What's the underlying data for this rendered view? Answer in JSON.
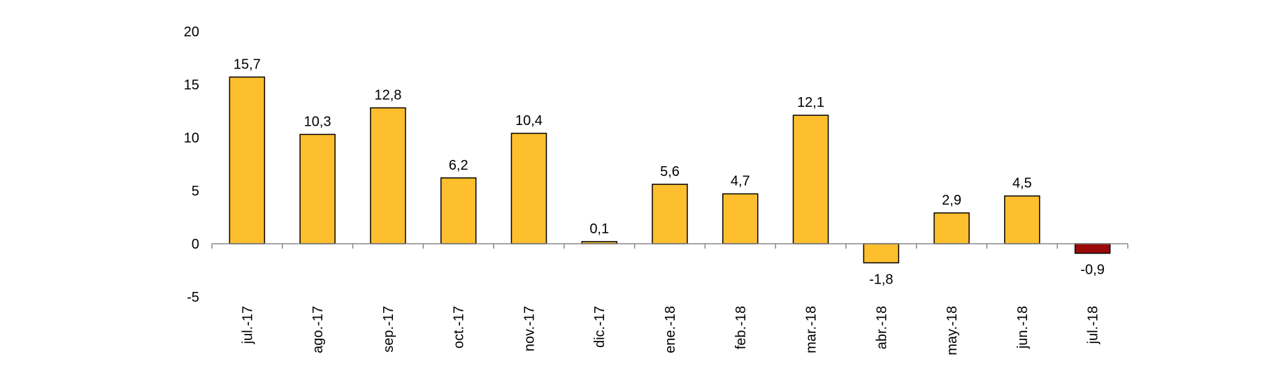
{
  "chart_data": {
    "type": "bar",
    "categories": [
      "jul.-17",
      "ago.-17",
      "sep.-17",
      "oct.-17",
      "nov.-17",
      "dic.-17",
      "ene.-18",
      "feb.-18",
      "mar.-18",
      "abr.-18",
      "may.-18",
      "jun.-18",
      "jul.-18"
    ],
    "values": [
      15.7,
      10.3,
      12.8,
      6.2,
      10.4,
      0.1,
      5.6,
      4.7,
      12.1,
      -1.8,
      2.9,
      4.5,
      -0.9
    ],
    "value_labels": [
      "15,7",
      "10,3",
      "12,8",
      "6,2",
      "10,4",
      "0,1",
      "5,6",
      "4,7",
      "12,1",
      "-1,8",
      "2,9",
      "4,5",
      "-0,9"
    ],
    "y_ticks": [
      20,
      15,
      10,
      5,
      0,
      -5
    ],
    "y_tick_labels": [
      "20",
      "15",
      "10",
      "5",
      "0",
      "-5"
    ],
    "ylim": [
      -5,
      20
    ],
    "title": "",
    "xlabel": "",
    "ylabel": "",
    "grid": false,
    "colors": {
      "bar_default": "#FDBF2D",
      "bar_highlight": "#9B0A0A",
      "bar_outline": "#000000",
      "axis": "#888888"
    },
    "highlight_index": 12
  }
}
